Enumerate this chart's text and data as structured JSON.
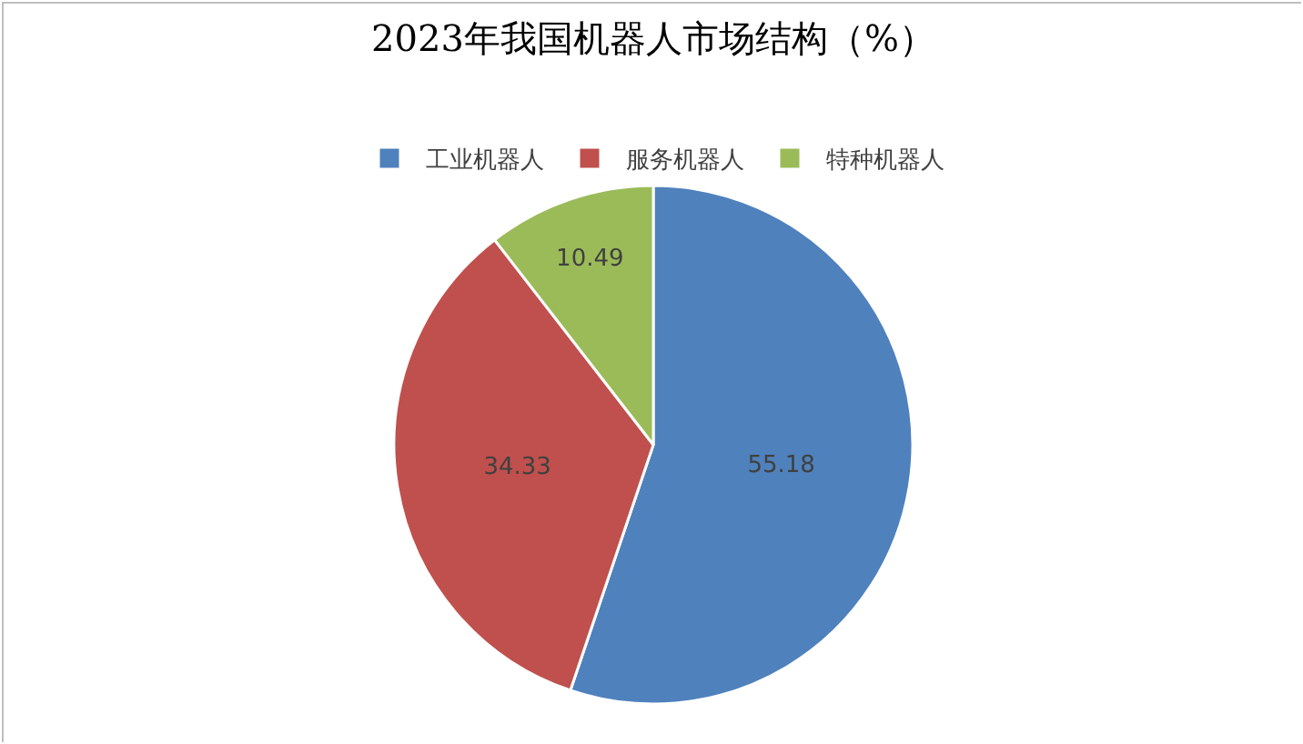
{
  "chart_data": {
    "type": "pie",
    "title": "2023年我国机器人市场结构（%）",
    "categories": [
      "工业机器人",
      "服务机器人",
      "特种机器人"
    ],
    "values": [
      55.18,
      34.33,
      10.49
    ],
    "colors": [
      "#4f81bd",
      "#c0504d",
      "#9bbb59"
    ],
    "data_labels": true,
    "legend": "top"
  }
}
